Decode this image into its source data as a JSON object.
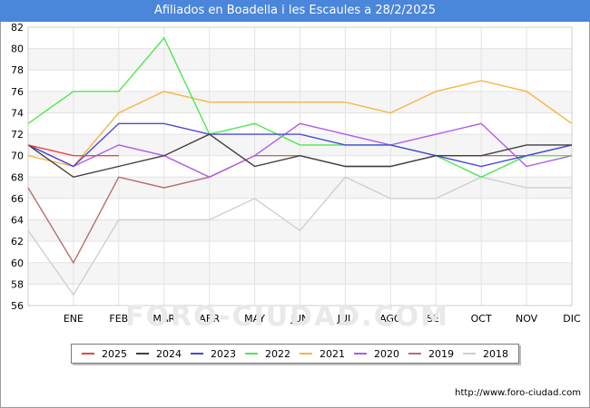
{
  "title": "Afiliados en Boadella i les Escaules a 28/2/2025",
  "source": "http://www.foro-ciudad.com",
  "watermark": "FORO-CIUDAD.COM",
  "chart_data": {
    "type": "line",
    "categories": [
      "",
      "ENE",
      "FEB",
      "MAR",
      "ABR",
      "MAY",
      "JUN",
      "JUL",
      "AGO",
      "SEP",
      "OCT",
      "NOV",
      "DIC"
    ],
    "ylim": [
      56,
      82
    ],
    "yticks": [
      56,
      58,
      60,
      62,
      64,
      66,
      68,
      70,
      72,
      74,
      76,
      78,
      80,
      82
    ],
    "grid": true,
    "legend_position": "bottom",
    "series": [
      {
        "name": "2025",
        "color": "#e8473f",
        "values": [
          71,
          70,
          70,
          null,
          null,
          null,
          null,
          null,
          null,
          null,
          null,
          null,
          null
        ]
      },
      {
        "name": "2024",
        "color": "#404040",
        "values": [
          71,
          68,
          69,
          70,
          72,
          69,
          70,
          69,
          69,
          70,
          70,
          71,
          71
        ]
      },
      {
        "name": "2023",
        "color": "#4a4ad9",
        "values": [
          71,
          69,
          73,
          73,
          72,
          72,
          72,
          71,
          71,
          70,
          69,
          70,
          71
        ]
      },
      {
        "name": "2022",
        "color": "#4fe84f",
        "values": [
          73,
          76,
          76,
          81,
          72,
          73,
          71,
          71,
          71,
          70,
          68,
          70,
          70
        ]
      },
      {
        "name": "2021",
        "color": "#f5b642",
        "values": [
          70,
          69,
          74,
          76,
          75,
          75,
          75,
          75,
          74,
          76,
          77,
          76,
          73
        ]
      },
      {
        "name": "2020",
        "color": "#b35be8",
        "values": [
          71,
          69,
          71,
          70,
          68,
          70,
          73,
          72,
          71,
          72,
          73,
          69,
          70
        ]
      },
      {
        "name": "2019",
        "color": "#b5706e",
        "values": [
          67,
          60,
          68,
          67,
          68,
          70,
          70,
          69,
          69,
          70,
          70,
          70,
          71
        ]
      },
      {
        "name": "2018",
        "color": "#d0d0d0",
        "values": [
          63,
          57,
          64,
          64,
          64,
          66,
          63,
          68,
          66,
          66,
          68,
          67,
          67
        ]
      }
    ]
  }
}
